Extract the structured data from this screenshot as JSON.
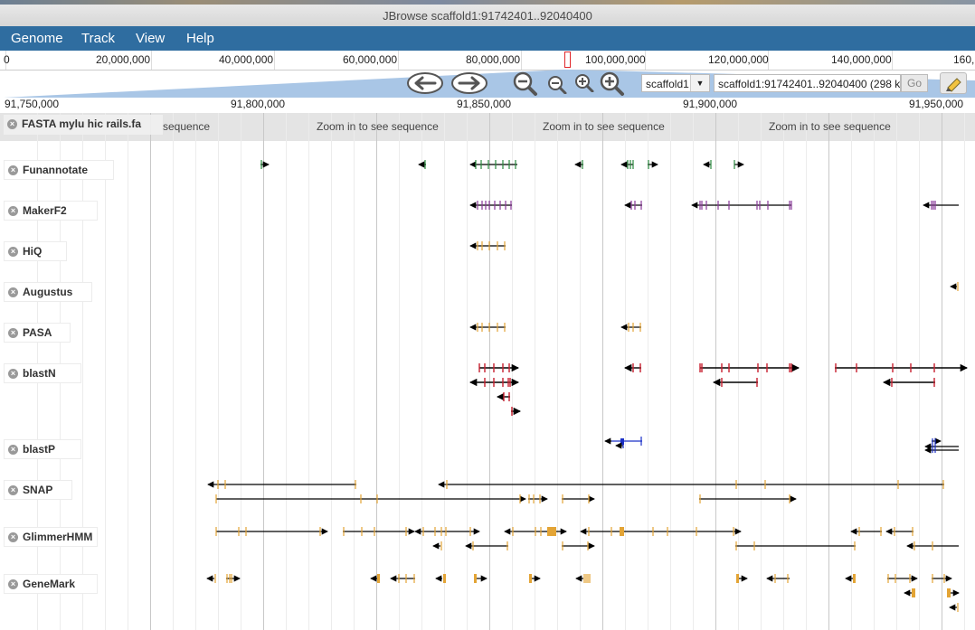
{
  "window": {
    "title": "JBrowse scaffold1:91742401..92040400"
  },
  "menus": [
    "Genome",
    "Track",
    "View",
    "Help"
  ],
  "overview": {
    "labels": [
      "0",
      "20,000,000",
      "40,000,000",
      "60,000,000",
      "80,000,000",
      "100,000,000",
      "120,000,000",
      "140,000,000",
      "160,"
    ]
  },
  "nav": {
    "refseq": "scaffold1",
    "location": "scaffold1:91742401..92040400 (298 k",
    "go_label": "Go"
  },
  "ruler": {
    "labels": [
      "91,750,000",
      "91,800,000",
      "91,850,000",
      "91,900,000",
      "91,950,000"
    ]
  },
  "sequence": {
    "zoom_message": "Zoom in to see sequence",
    "partial": "sequence"
  },
  "tracks": [
    {
      "name": "FASTA mylu hic rails.fa"
    },
    {
      "name": "Funannotate"
    },
    {
      "name": "MakerF2"
    },
    {
      "name": "HiQ"
    },
    {
      "name": "Augustus"
    },
    {
      "name": "PASA"
    },
    {
      "name": "blastN"
    },
    {
      "name": "blastP"
    },
    {
      "name": "SNAP"
    },
    {
      "name": "GlimmerHMM"
    },
    {
      "name": "GeneMark"
    }
  ],
  "colors": {
    "menubar": "#2f6da0",
    "funannotate": "#2a8a3e",
    "maker": "#8a3a9a",
    "orange": "#e3a435",
    "blastn": "#c8202f",
    "blastp": "#1b30c8"
  }
}
